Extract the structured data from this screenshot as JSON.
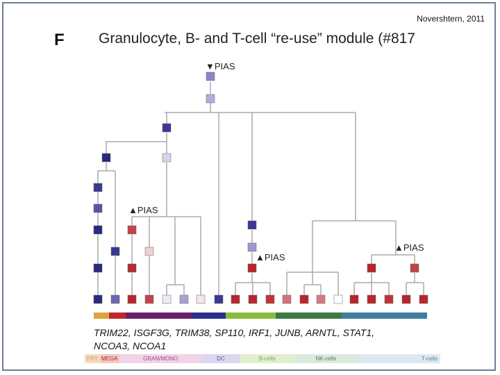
{
  "citation": "Novershtern, 2011",
  "panel_letter": "F",
  "title": "Granulocyte, B- and T-cell “re-use” module (#817",
  "annotations": [
    {
      "id": "pias-top",
      "text": "▼PIAS"
    },
    {
      "id": "pias-left",
      "text": "▲PIAS"
    },
    {
      "id": "pias-mid",
      "text": "▲PIAS"
    },
    {
      "id": "pias-right",
      "text": "▲PIAS"
    }
  ],
  "genes_line1": "TRIM22, ISGF3G, TRIM38, SP110, IRF1, JUNB, ARNTL, STAT1,",
  "genes_line2": "NCOA3, NCOA1",
  "legend": [
    {
      "label": "ERY",
      "bg": "#f5dcc0",
      "fg": "#d59a4e",
      "flex": 22
    },
    {
      "label": "MEGA",
      "bg": "#f4c7c4",
      "fg": "#a02a2a",
      "flex": 28
    },
    {
      "label": "GRAN/MONO",
      "bg": "#f0d3e6",
      "fg": "#9a4f84",
      "flex": 120
    },
    {
      "label": "DC",
      "bg": "#dcd7f0",
      "fg": "#5c5794",
      "flex": 55
    },
    {
      "label": "B-cells",
      "bg": "#e0efcd",
      "fg": "#7ea64d",
      "flex": 80
    },
    {
      "label": "NK-cells",
      "bg": "#dce9dd",
      "fg": "#4f7e58",
      "flex": 90
    },
    {
      "label": "T-cells",
      "bg": "#dde8f0",
      "fg": "#55809a",
      "flex": 117
    }
  ],
  "colorbar": [
    "#e2a23c",
    "#c0272d",
    "#6a1f6b",
    "#2a2f8d",
    "#8cba3f",
    "#3d7a44",
    "#3f7da0"
  ]
}
